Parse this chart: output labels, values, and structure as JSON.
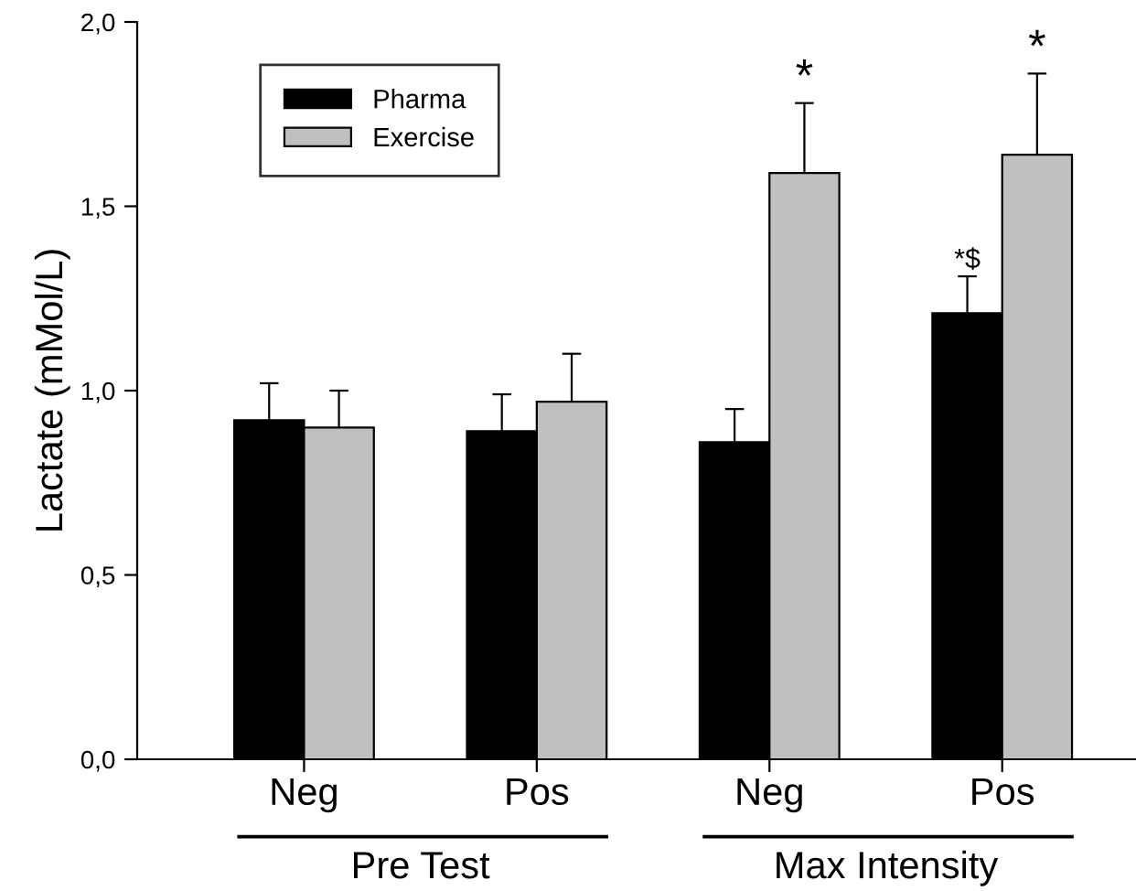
{
  "chart_data": {
    "type": "bar",
    "ylabel": "Lactate (mMol/L)",
    "categories": [
      "Neg",
      "Pos",
      "Neg",
      "Pos"
    ],
    "series": [
      {
        "name": "Pharma",
        "color": "#000000",
        "values": [
          0.92,
          0.89,
          0.86,
          1.21
        ],
        "errors": [
          [
            0.92,
            1.02
          ],
          [
            0.89,
            0.99
          ],
          [
            0.86,
            0.95
          ],
          [
            1.21,
            1.31
          ]
        ]
      },
      {
        "name": "Exercise",
        "color": "#c0c0c0",
        "values": [
          0.9,
          0.97,
          1.59,
          1.64
        ],
        "errors": [
          [
            0.9,
            1.0
          ],
          [
            0.97,
            1.1
          ],
          [
            1.59,
            1.78
          ],
          [
            1.64,
            1.86
          ]
        ]
      }
    ],
    "ylim": [
      0,
      2
    ],
    "yticks": [
      {
        "value": 0,
        "label": "0,0"
      },
      {
        "value": 0.5,
        "label": "0,5"
      },
      {
        "value": 1,
        "label": "1,0"
      },
      {
        "value": 1.5,
        "label": "1,5"
      },
      {
        "value": 2,
        "label": "2,0"
      }
    ],
    "annotations": [
      "Pre Test",
      "Max Intensity",
      "*",
      "*$",
      "*"
    ],
    "legend": "top left",
    "grid": false
  }
}
